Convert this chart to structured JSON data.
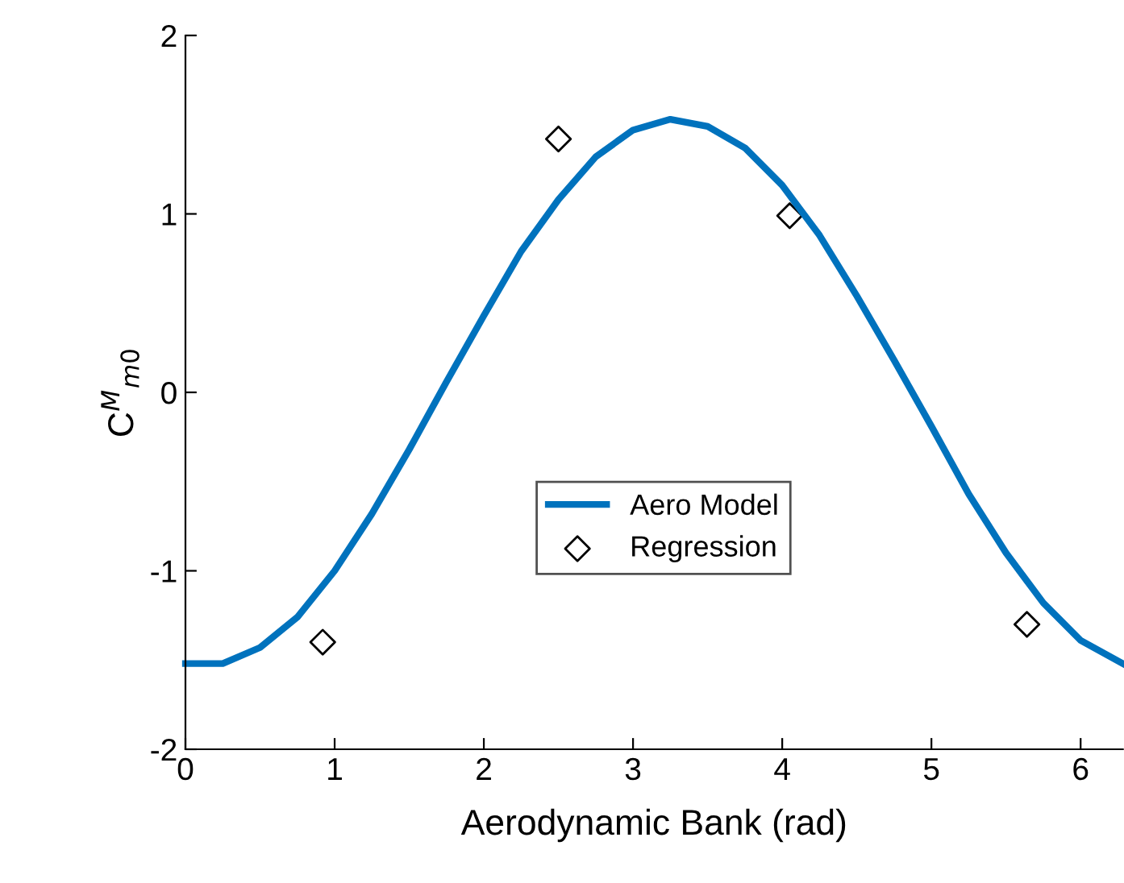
{
  "chart_data": {
    "type": "line",
    "xlabel": "Aerodynamic Bank (rad)",
    "ylabel": "C$^{M}$$_{m0}$",
    "xlim": [
      0,
      6.2832
    ],
    "ylim": [
      -2,
      2
    ],
    "xticks": [
      0,
      1,
      2,
      3,
      4,
      5,
      6
    ],
    "yticks": [
      -2,
      -1,
      0,
      1,
      2
    ],
    "grid": false,
    "legend": "center",
    "series": [
      {
        "name": "Aero Model",
        "type": "line",
        "color": "#0072bd",
        "marker": "none",
        "line_style": "solid",
        "x": [
          0,
          0.25,
          0.5,
          0.75,
          1.0,
          1.25,
          1.5,
          1.75,
          2.0,
          2.25,
          2.5,
          2.75,
          3.0,
          3.25,
          3.5,
          3.75,
          4.0,
          4.25,
          4.5,
          4.75,
          5.0,
          5.25,
          5.5,
          5.75,
          6.0,
          6.2832
        ],
        "values": [
          -1.52,
          -1.52,
          -1.43,
          -1.26,
          -1.0,
          -0.68,
          -0.32,
          0.06,
          0.43,
          0.79,
          1.08,
          1.32,
          1.47,
          1.53,
          1.49,
          1.37,
          1.16,
          0.88,
          0.54,
          0.18,
          -0.19,
          -0.57,
          -0.9,
          -1.18,
          -1.39,
          -1.52
        ]
      },
      {
        "name": "Regression",
        "type": "scatter",
        "color": "#000000",
        "marker": "diamond",
        "x": [
          0.92,
          2.5,
          4.05,
          5.64
        ],
        "values": [
          -1.4,
          1.42,
          0.99,
          -1.3
        ]
      }
    ]
  }
}
